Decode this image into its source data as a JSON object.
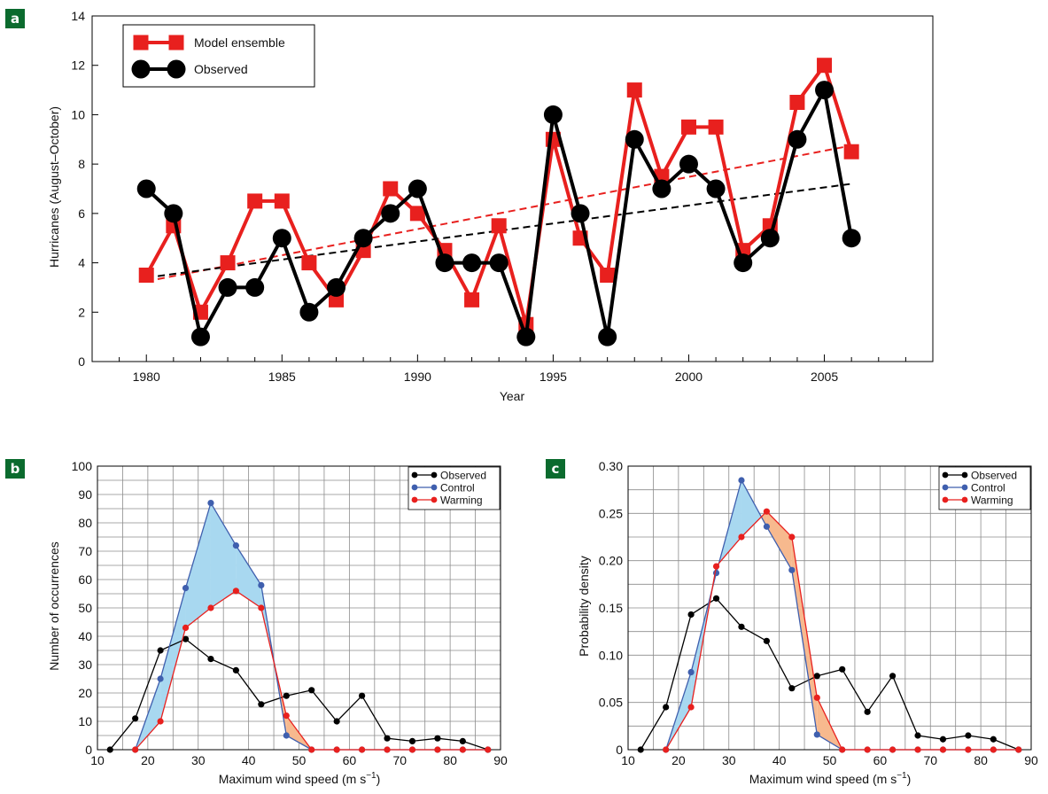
{
  "chart_data": [
    {
      "panel": "a",
      "type": "line",
      "xlabel": "Year",
      "ylabel": "Hurricanes (August–October)",
      "xlim": [
        1978,
        2009
      ],
      "ylim": [
        0,
        14
      ],
      "xticks": [
        1980,
        1985,
        1990,
        1995,
        2000,
        2005
      ],
      "yticks": [
        0,
        2,
        4,
        6,
        8,
        10,
        12,
        14
      ],
      "grid": false,
      "legend_position": "top-left",
      "x": [
        1980,
        1981,
        1982,
        1983,
        1984,
        1985,
        1986,
        1987,
        1988,
        1989,
        1990,
        1991,
        1992,
        1993,
        1994,
        1995,
        1996,
        1997,
        1998,
        1999,
        2000,
        2001,
        2002,
        2003,
        2004,
        2005,
        2006
      ],
      "series": [
        {
          "name": "Model ensemble",
          "color": "#e8201e",
          "marker": "square",
          "values": [
            3.5,
            5.5,
            2,
            4,
            6.5,
            6.5,
            4,
            2.5,
            4.5,
            7,
            6,
            4.5,
            2.5,
            5.5,
            1.5,
            9,
            5,
            3.5,
            11,
            7.5,
            9.5,
            9.5,
            4.5,
            5.5,
            10.5,
            12,
            8.5
          ],
          "trend": [
            3.25,
            8.75
          ]
        },
        {
          "name": "Observed",
          "color": "#000000",
          "marker": "circle",
          "values": [
            7,
            6,
            1,
            3,
            3,
            5,
            2,
            3,
            5,
            6,
            7,
            4,
            4,
            4,
            1,
            10,
            6,
            1,
            9,
            7,
            8,
            7,
            4,
            5,
            9,
            11,
            5
          ],
          "trend": [
            3.4,
            7.2
          ]
        }
      ]
    },
    {
      "panel": "b",
      "type": "line",
      "xlabel": "Maximum wind speed (m s−1)",
      "ylabel": "Number of occurrences",
      "xlim": [
        10,
        90
      ],
      "ylim": [
        0,
        100
      ],
      "xticks": [
        10,
        20,
        30,
        40,
        50,
        60,
        70,
        80,
        90
      ],
      "yticks": [
        0,
        10,
        20,
        30,
        40,
        50,
        60,
        70,
        80,
        90,
        100
      ],
      "grid": true,
      "legend_position": "top-right",
      "series": [
        {
          "name": "Observed",
          "color": "#000000",
          "x": [
            12.5,
            17.5,
            22.5,
            27.5,
            32.5,
            37.5,
            42.5,
            47.5,
            52.5,
            57.5,
            62.5,
            67.5,
            72.5,
            77.5,
            82.5,
            87.5
          ],
          "values": [
            0,
            11,
            35,
            39,
            32,
            28,
            16,
            19,
            21,
            10,
            19,
            4,
            3,
            4,
            3,
            0
          ]
        },
        {
          "name": "Control",
          "color": "#3f5fae",
          "x": [
            17.5,
            22.5,
            27.5,
            32.5,
            37.5,
            42.5,
            47.5,
            52.5,
            57.5,
            62.5,
            67.5,
            72.5,
            77.5,
            82.5,
            87.5
          ],
          "values": [
            0,
            25,
            57,
            87,
            72,
            58,
            5,
            0,
            0,
            0,
            0,
            0,
            0,
            0,
            0
          ]
        },
        {
          "name": "Warming",
          "color": "#e8201e",
          "x": [
            17.5,
            22.5,
            27.5,
            32.5,
            37.5,
            42.5,
            47.5,
            52.5,
            57.5,
            62.5,
            67.5,
            72.5,
            77.5,
            82.5,
            87.5
          ],
          "values": [
            0,
            10,
            43,
            50,
            56,
            50,
            12,
            0,
            0,
            0,
            0,
            0,
            0,
            0,
            0
          ]
        }
      ]
    },
    {
      "panel": "c",
      "type": "line",
      "xlabel": "Maximum wind speed (m s−1)",
      "ylabel": "Probability density",
      "xlim": [
        10,
        90
      ],
      "ylim": [
        0,
        0.3
      ],
      "xticks": [
        10,
        20,
        30,
        40,
        50,
        60,
        70,
        80,
        90
      ],
      "yticks": [
        0,
        0.05,
        0.1,
        0.15,
        0.2,
        0.25,
        0.3
      ],
      "ytick_labels": [
        "0",
        "0.05",
        "0.10",
        "0.15",
        "0.20",
        "0.25",
        "0.30"
      ],
      "grid": true,
      "legend_position": "top-right",
      "series": [
        {
          "name": "Observed",
          "color": "#000000",
          "x": [
            12.5,
            17.5,
            22.5,
            27.5,
            32.5,
            37.5,
            42.5,
            47.5,
            52.5,
            57.5,
            62.5,
            67.5,
            72.5,
            77.5,
            82.5,
            87.5
          ],
          "values": [
            0,
            0.045,
            0.143,
            0.16,
            0.13,
            0.115,
            0.065,
            0.078,
            0.085,
            0.04,
            0.078,
            0.015,
            0.011,
            0.015,
            0.011,
            0
          ]
        },
        {
          "name": "Control",
          "color": "#3f5fae",
          "x": [
            17.5,
            22.5,
            27.5,
            32.5,
            37.5,
            42.5,
            47.5,
            52.5,
            57.5,
            62.5,
            67.5,
            72.5,
            77.5,
            82.5,
            87.5
          ],
          "values": [
            0,
            0.082,
            0.187,
            0.285,
            0.236,
            0.19,
            0.016,
            0,
            0,
            0,
            0,
            0,
            0,
            0,
            0
          ]
        },
        {
          "name": "Warming",
          "color": "#e8201e",
          "x": [
            17.5,
            22.5,
            27.5,
            32.5,
            37.5,
            42.5,
            47.5,
            52.5,
            57.5,
            62.5,
            67.5,
            72.5,
            77.5,
            82.5,
            87.5
          ],
          "values": [
            0,
            0.045,
            0.194,
            0.225,
            0.252,
            0.225,
            0.055,
            0,
            0,
            0,
            0,
            0,
            0,
            0,
            0
          ]
        }
      ]
    }
  ],
  "colors": {
    "badge": "#0b6b2e",
    "blue_fill": "#a8d8f0",
    "orange_fill": "#f7b98e"
  }
}
